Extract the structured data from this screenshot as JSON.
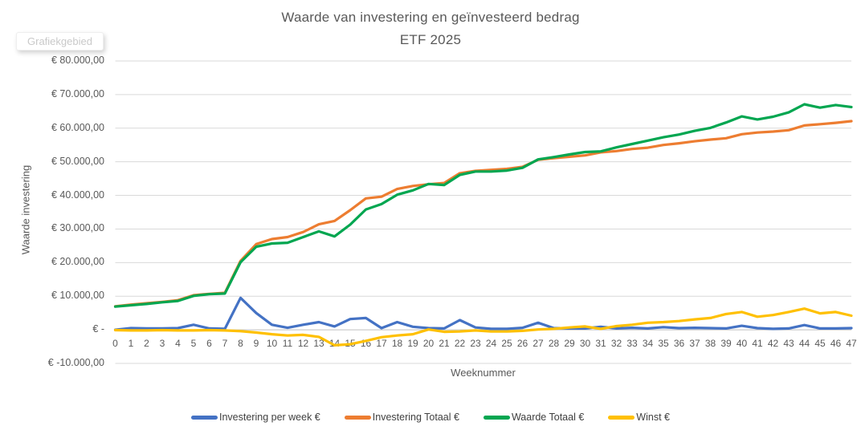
{
  "tooltip_label": "Grafiekgebied",
  "y_axis": {
    "title": "Waarde investering",
    "tick_labels": [
      "€ 80.000,00",
      "€ 70.000,00",
      "€ 60.000,00",
      "€ 50.000,00",
      "€ 40.000,00",
      "€ 30.000,00",
      "€ 20.000,00",
      "€ 10.000,00",
      "€ -",
      "€ -10.000,00"
    ],
    "tick_values": [
      80000,
      70000,
      60000,
      50000,
      40000,
      30000,
      20000,
      10000,
      0,
      -10000
    ]
  },
  "x_axis": {
    "title": "Weeknummer",
    "labels": [
      "0",
      "1",
      "2",
      "3",
      "4",
      "5",
      "6",
      "7",
      "8",
      "9",
      "10",
      "11",
      "12",
      "13",
      "14",
      "15",
      "16",
      "17",
      "18",
      "19",
      "20",
      "21",
      "22",
      "23",
      "24",
      "25",
      "26",
      "27",
      "28",
      "29",
      "30",
      "31",
      "32",
      "33",
      "34",
      "35",
      "36",
      "37",
      "38",
      "39",
      "40",
      "41",
      "42",
      "43",
      "44",
      "45",
      "46",
      "47"
    ]
  },
  "chart_data": {
    "type": "line",
    "title": "Waarde van investering en geïnvesteerd bedrag",
    "subtitle": "ETF 2025",
    "xlabel": "Weeknummer",
    "ylabel": "Waarde investering",
    "x": [
      0,
      1,
      2,
      3,
      4,
      5,
      6,
      7,
      8,
      9,
      10,
      11,
      12,
      13,
      14,
      15,
      16,
      17,
      18,
      19,
      20,
      21,
      22,
      23,
      24,
      25,
      26,
      27,
      28,
      29,
      30,
      31,
      32,
      33,
      34,
      35,
      36,
      37,
      38,
      39,
      40,
      41,
      42,
      43,
      44,
      45,
      46,
      47
    ],
    "ylim": [
      -10000,
      80000
    ],
    "grid": true,
    "legend_position": "bottom",
    "series": [
      {
        "name": "Investering per week €",
        "color": "#4472C4",
        "values": [
          0,
          500,
          400,
          400,
          500,
          1500,
          400,
          300,
          9500,
          5000,
          1500,
          600,
          1500,
          2300,
          1000,
          3200,
          3500,
          500,
          2300,
          900,
          500,
          400,
          2900,
          700,
          300,
          300,
          600,
          2100,
          500,
          400,
          400,
          900,
          400,
          600,
          400,
          800,
          500,
          600,
          500,
          400,
          1200,
          500,
          300,
          400,
          1400,
          400,
          400,
          500
        ]
      },
      {
        "name": "Investering Totaal €",
        "color": "#ED7D31",
        "values": [
          7000,
          7500,
          7900,
          8300,
          8800,
          10300,
          10700,
          11000,
          20500,
          25500,
          27000,
          27600,
          29100,
          31400,
          32400,
          35600,
          39100,
          39600,
          41900,
          42800,
          43300,
          43700,
          46600,
          47300,
          47600,
          47900,
          48500,
          50600,
          51100,
          51500,
          51900,
          52800,
          53200,
          53800,
          54200,
          55000,
          55500,
          56100,
          56600,
          57000,
          58200,
          58700,
          59000,
          59400,
          60800,
          61200,
          61600,
          62100
        ]
      },
      {
        "name": "Waarde Totaal €",
        "color": "#00A650",
        "values": [
          6900,
          7300,
          7700,
          8200,
          8600,
          10100,
          10600,
          10800,
          20100,
          24700,
          25700,
          25900,
          27600,
          29300,
          27800,
          31300,
          35800,
          37400,
          40200,
          41500,
          43400,
          43100,
          46100,
          47100,
          47100,
          47400,
          48200,
          50700,
          51400,
          52200,
          52900,
          53100,
          54300,
          55300,
          56300,
          57300,
          58100,
          59200,
          60100,
          61700,
          63500,
          62600,
          63400,
          64700,
          67100,
          66100,
          66900,
          66300
        ]
      },
      {
        "name": "Winst €",
        "color": "#FFC000",
        "values": [
          -100,
          -200,
          -200,
          -100,
          -200,
          -200,
          -100,
          -200,
          -400,
          -800,
          -1300,
          -1700,
          -1500,
          -2100,
          -4600,
          -4300,
          -3300,
          -2200,
          -1700,
          -1300,
          100,
          -600,
          -500,
          -200,
          -500,
          -500,
          -300,
          100,
          300,
          700,
          1000,
          300,
          1100,
          1500,
          2100,
          2300,
          2600,
          3100,
          3500,
          4700,
          5300,
          3900,
          4400,
          5300,
          6300,
          4900,
          5300,
          4200
        ]
      }
    ]
  }
}
